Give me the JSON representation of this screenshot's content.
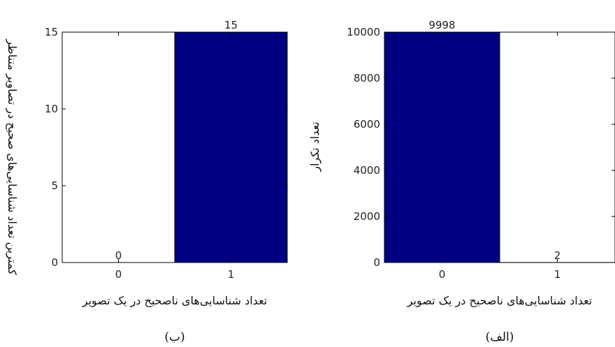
{
  "chart_data": [
    {
      "id": "right",
      "type": "bar",
      "categories": [
        "0",
        "1"
      ],
      "values": [
        9998,
        2
      ],
      "ylim": [
        0,
        10000
      ],
      "yticks": [
        0,
        2000,
        4000,
        6000,
        8000,
        10000
      ],
      "data_labels": [
        "9998",
        "2"
      ],
      "xlabel": "تعداد شناسایی‌های ناصحیح در یک تصویر",
      "ylabel": "تعداد تکرار",
      "caption": "(الف)",
      "grid": false,
      "bar_color": "#000080"
    },
    {
      "id": "left",
      "type": "bar",
      "categories": [
        "0",
        "1"
      ],
      "values": [
        0,
        15
      ],
      "ylim": [
        0,
        15
      ],
      "yticks": [
        0,
        5,
        10,
        15
      ],
      "data_labels": [
        "0",
        "15"
      ],
      "xlabel": "تعداد شناسایی‌های ناصحیح در یک تصویر",
      "ylabel": "کمترین تعداد شناسایی‌های صحیح در تصاویر متناظر",
      "caption": "(ب)",
      "grid": false,
      "bar_color": "#000080"
    }
  ]
}
